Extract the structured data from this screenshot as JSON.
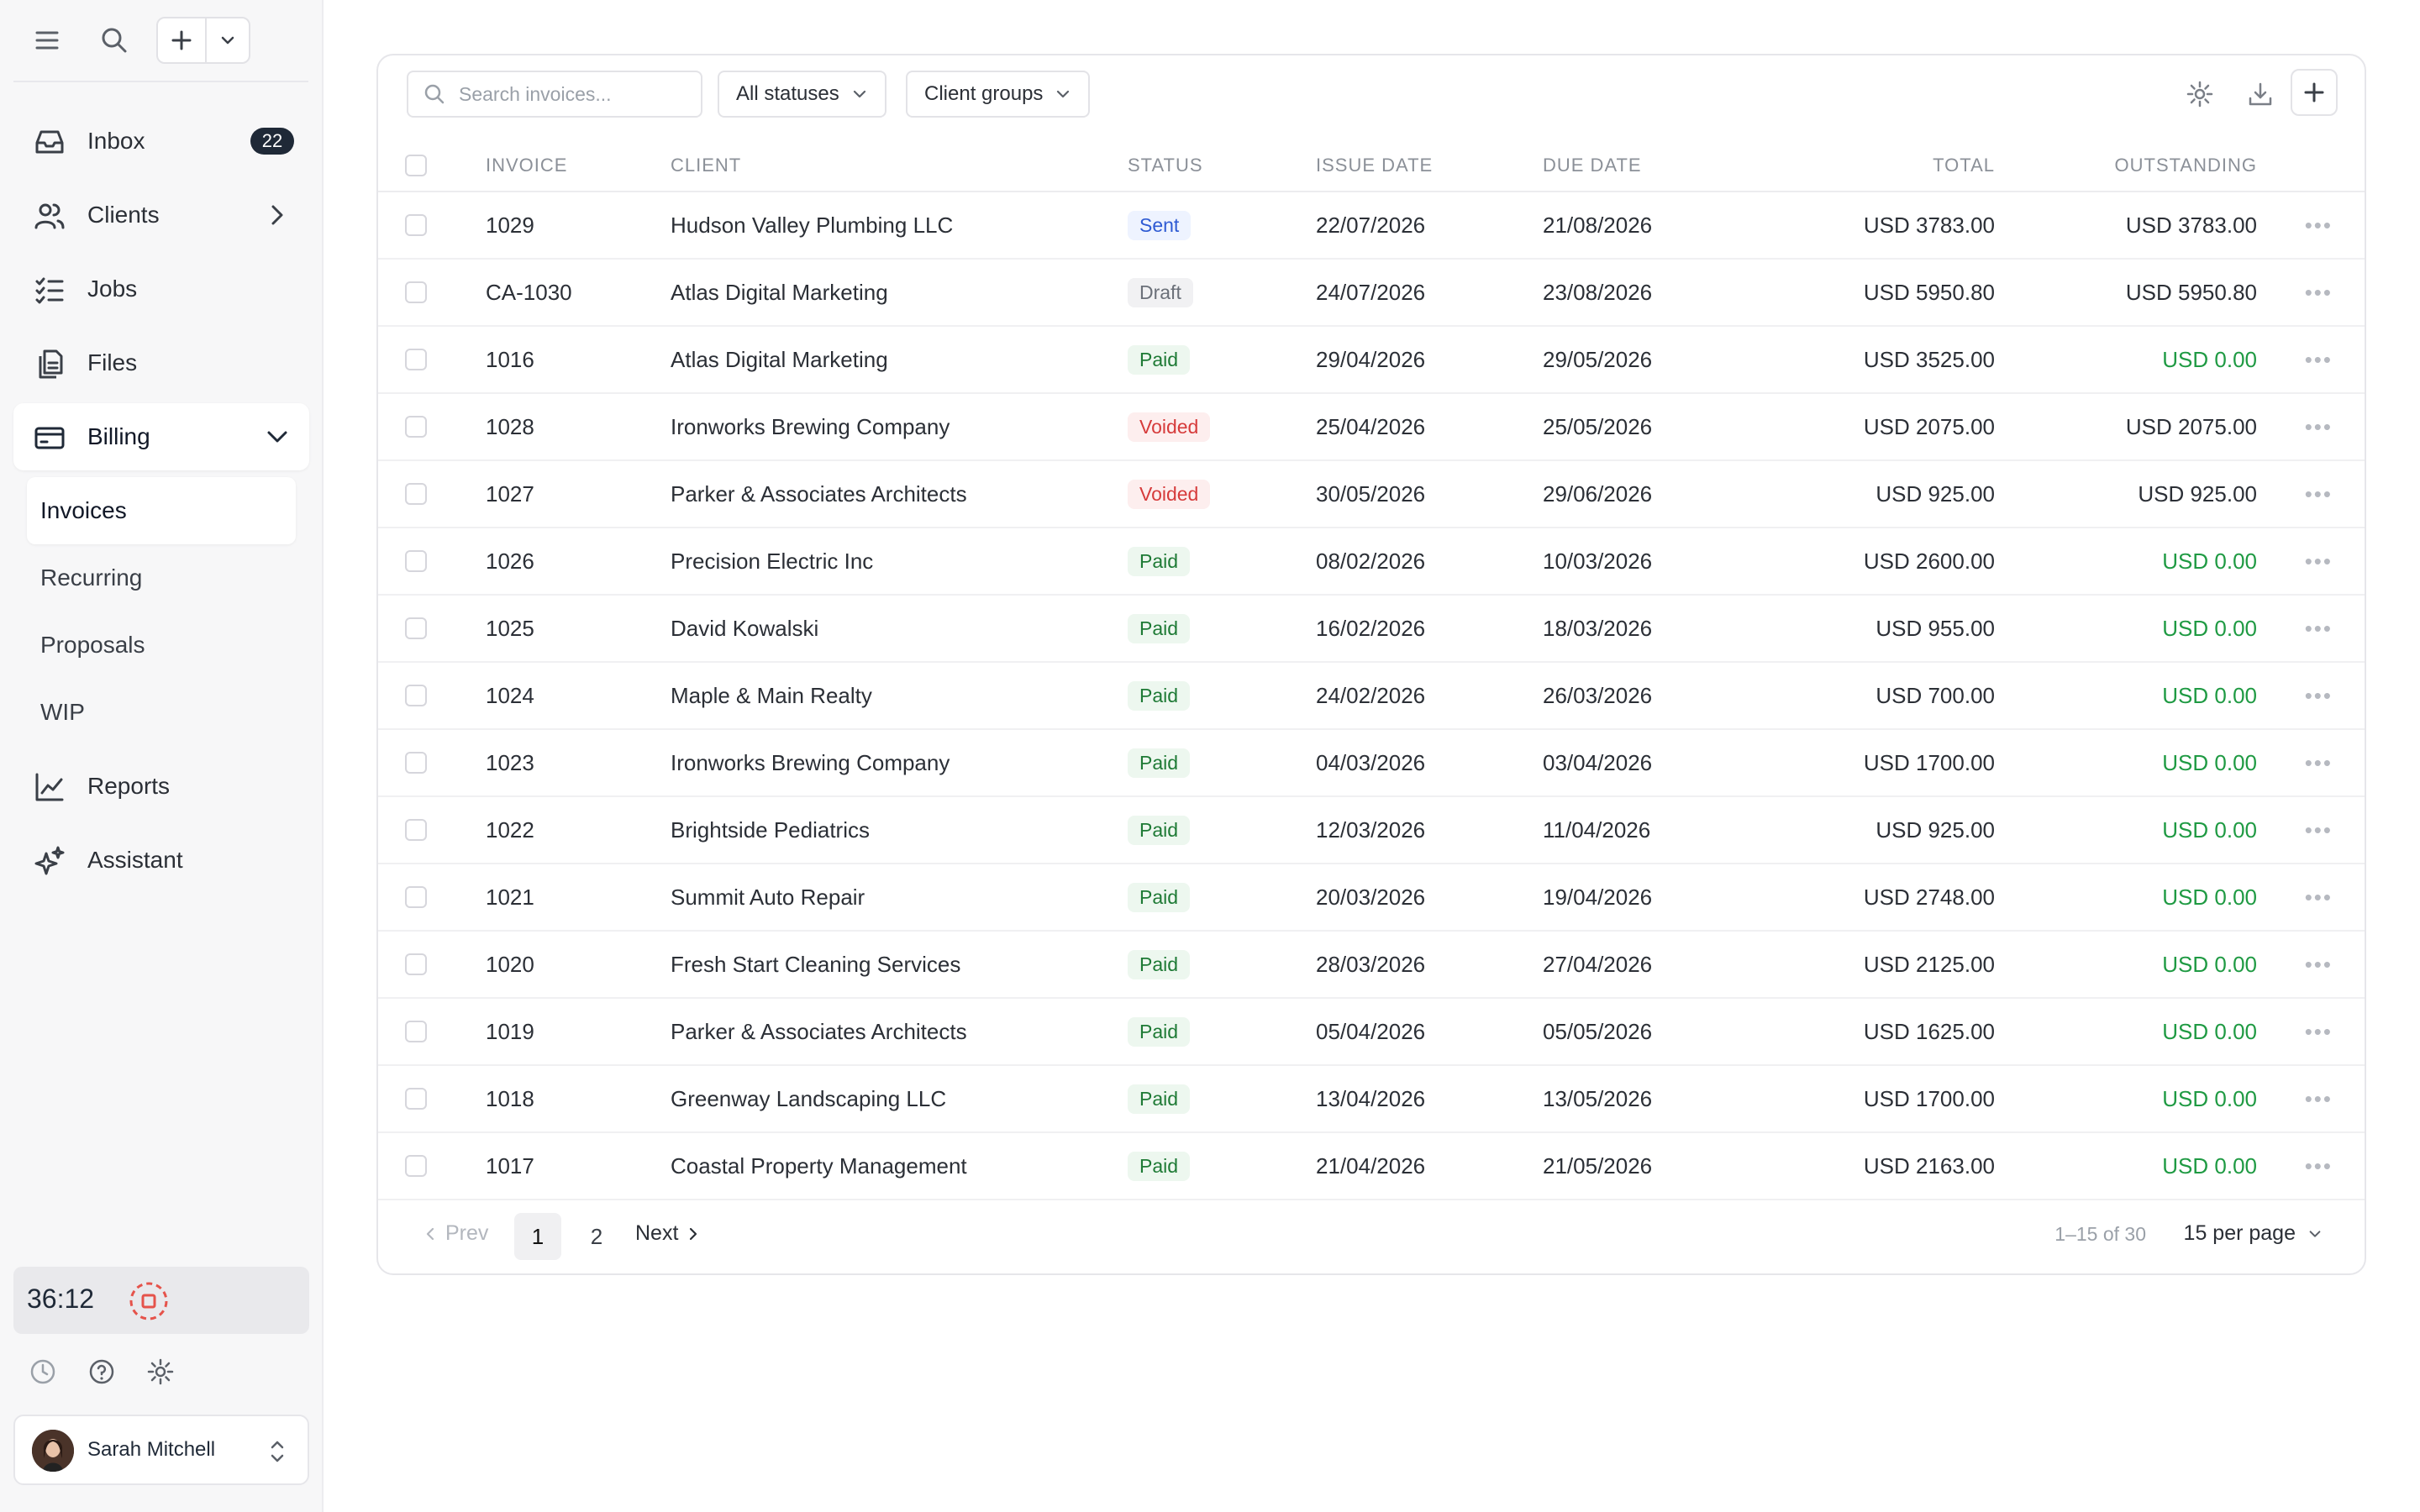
{
  "sidebar": {
    "nav": [
      {
        "key": "inbox",
        "label": "Inbox",
        "icon": "inbox-icon",
        "badge": "22"
      },
      {
        "key": "clients",
        "label": "Clients",
        "icon": "users-icon"
      },
      {
        "key": "jobs",
        "label": "Jobs",
        "icon": "checklist-icon"
      },
      {
        "key": "files",
        "label": "Files",
        "icon": "files-icon"
      },
      {
        "key": "billing",
        "label": "Billing",
        "icon": "credit-card-icon"
      },
      {
        "key": "reports",
        "label": "Reports",
        "icon": "line-chart-icon"
      },
      {
        "key": "assistant",
        "label": "Assistant",
        "icon": "sparkles-icon"
      }
    ],
    "billing_sub": [
      {
        "label": "Invoices",
        "active": true
      },
      {
        "label": "Recurring"
      },
      {
        "label": "Proposals"
      },
      {
        "label": "WIP"
      }
    ],
    "timer": "36:12",
    "user_name": "Sarah Mitchell"
  },
  "toolbar": {
    "search_placeholder": "Search invoices...",
    "status_filter": "All statuses",
    "group_filter": "Client groups"
  },
  "table": {
    "headers": {
      "invoice": "INVOICE",
      "client": "CLIENT",
      "status": "STATUS",
      "issue": "ISSUE DATE",
      "due": "DUE DATE",
      "total": "TOTAL",
      "outstanding": "OUTSTANDING"
    },
    "rows": [
      {
        "invoice": "1029",
        "client": "Hudson Valley Plumbing LLC",
        "status": "Sent",
        "issue": "22/07/2026",
        "due": "21/08/2026",
        "total": "USD 3783.00",
        "outstanding": "USD 3783.00"
      },
      {
        "invoice": "CA-1030",
        "client": "Atlas Digital Marketing",
        "status": "Draft",
        "issue": "24/07/2026",
        "due": "23/08/2026",
        "total": "USD 5950.80",
        "outstanding": "USD 5950.80"
      },
      {
        "invoice": "1016",
        "client": "Atlas Digital Marketing",
        "status": "Paid",
        "issue": "29/04/2026",
        "due": "29/05/2026",
        "total": "USD 3525.00",
        "outstanding": "USD 0.00"
      },
      {
        "invoice": "1028",
        "client": "Ironworks Brewing Company",
        "status": "Voided",
        "issue": "25/04/2026",
        "due": "25/05/2026",
        "total": "USD 2075.00",
        "outstanding": "USD 2075.00"
      },
      {
        "invoice": "1027",
        "client": "Parker & Associates Architects",
        "status": "Voided",
        "issue": "30/05/2026",
        "due": "29/06/2026",
        "total": "USD 925.00",
        "outstanding": "USD 925.00"
      },
      {
        "invoice": "1026",
        "client": "Precision Electric Inc",
        "status": "Paid",
        "issue": "08/02/2026",
        "due": "10/03/2026",
        "total": "USD 2600.00",
        "outstanding": "USD 0.00"
      },
      {
        "invoice": "1025",
        "client": "David Kowalski",
        "status": "Paid",
        "issue": "16/02/2026",
        "due": "18/03/2026",
        "total": "USD 955.00",
        "outstanding": "USD 0.00"
      },
      {
        "invoice": "1024",
        "client": "Maple & Main Realty",
        "status": "Paid",
        "issue": "24/02/2026",
        "due": "26/03/2026",
        "total": "USD 700.00",
        "outstanding": "USD 0.00"
      },
      {
        "invoice": "1023",
        "client": "Ironworks Brewing Company",
        "status": "Paid",
        "issue": "04/03/2026",
        "due": "03/04/2026",
        "total": "USD 1700.00",
        "outstanding": "USD 0.00"
      },
      {
        "invoice": "1022",
        "client": "Brightside Pediatrics",
        "status": "Paid",
        "issue": "12/03/2026",
        "due": "11/04/2026",
        "total": "USD 925.00",
        "outstanding": "USD 0.00"
      },
      {
        "invoice": "1021",
        "client": "Summit Auto Repair",
        "status": "Paid",
        "issue": "20/03/2026",
        "due": "19/04/2026",
        "total": "USD 2748.00",
        "outstanding": "USD 0.00"
      },
      {
        "invoice": "1020",
        "client": "Fresh Start Cleaning Services",
        "status": "Paid",
        "issue": "28/03/2026",
        "due": "27/04/2026",
        "total": "USD 2125.00",
        "outstanding": "USD 0.00"
      },
      {
        "invoice": "1019",
        "client": "Parker & Associates Architects",
        "status": "Paid",
        "issue": "05/04/2026",
        "due": "05/05/2026",
        "total": "USD 1625.00",
        "outstanding": "USD 0.00"
      },
      {
        "invoice": "1018",
        "client": "Greenway Landscaping LLC",
        "status": "Paid",
        "issue": "13/04/2026",
        "due": "13/05/2026",
        "total": "USD 1700.00",
        "outstanding": "USD 0.00"
      },
      {
        "invoice": "1017",
        "client": "Coastal Property Management",
        "status": "Paid",
        "issue": "21/04/2026",
        "due": "21/05/2026",
        "total": "USD 2163.00",
        "outstanding": "USD 0.00"
      }
    ]
  },
  "pager": {
    "prev": "Prev",
    "page1": "1",
    "page2": "2",
    "next": "Next",
    "range": "1–15 of 30",
    "per_page": "15 per page"
  },
  "colors": {
    "sent": "#2f5bd3",
    "paid": "#1e7a35",
    "voided": "#d63b3b",
    "draft": "#6b7079",
    "outstanding_zero": "#1f9a43"
  }
}
